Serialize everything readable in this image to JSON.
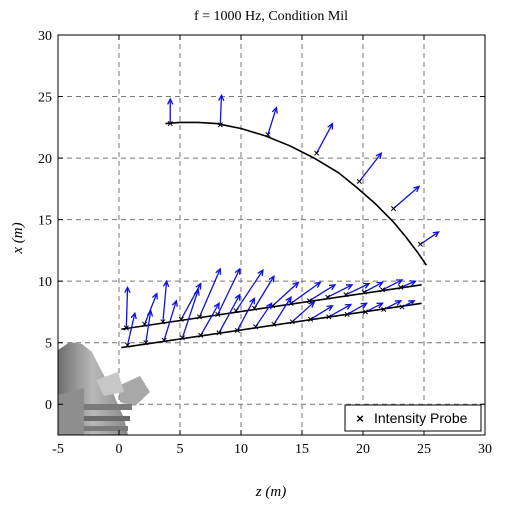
{
  "chart_data": {
    "type": "vector-field",
    "title": "f = 1000 Hz, Condition Mil",
    "xlabel": "z (m)",
    "ylabel": "x (m)",
    "xlim": [
      -5,
      30
    ],
    "ylim": [
      -2.5,
      30
    ],
    "xticks": [
      "-5",
      "0",
      "5",
      "10",
      "15",
      "20",
      "25",
      "30"
    ],
    "yticks": [
      "0",
      "5",
      "10",
      "15",
      "20",
      "25",
      "30"
    ],
    "grid": true,
    "legend": {
      "position": "bottom-right",
      "entries": [
        {
          "label": "Intensity Probe",
          "marker": "x"
        }
      ]
    },
    "colors": {
      "vector": "#1010e0",
      "probe": "#000000",
      "array": "#000000",
      "nozzle": "#9a9a9a"
    },
    "arrays": [
      {
        "name": "arc",
        "points": [
          [
            3.8,
            22.8
          ],
          [
            5.0,
            22.9
          ],
          [
            6.5,
            22.9
          ],
          [
            8.0,
            22.8
          ],
          [
            10.0,
            22.4
          ],
          [
            12.0,
            21.8
          ],
          [
            14.0,
            21.0
          ],
          [
            16.0,
            20.0
          ],
          [
            18.0,
            18.8
          ],
          [
            19.5,
            17.6
          ],
          [
            21.0,
            16.3
          ],
          [
            22.5,
            14.8
          ],
          [
            23.5,
            13.6
          ],
          [
            24.5,
            12.3
          ],
          [
            25.2,
            11.3
          ]
        ]
      },
      {
        "name": "upper-line",
        "points": [
          [
            0.2,
            6.1
          ],
          [
            24.8,
            9.7
          ]
        ]
      },
      {
        "name": "lower-line",
        "points": [
          [
            0.2,
            4.6
          ],
          [
            24.8,
            8.2
          ]
        ]
      }
    ],
    "vectors": [
      {
        "x": 4.2,
        "y": 22.8,
        "dx": 0.0,
        "dy": 2.0
      },
      {
        "x": 8.3,
        "y": 22.7,
        "dx": 0.1,
        "dy": 2.4
      },
      {
        "x": 12.2,
        "y": 21.9,
        "dx": 0.7,
        "dy": 2.2
      },
      {
        "x": 16.2,
        "y": 20.4,
        "dx": 1.3,
        "dy": 2.4
      },
      {
        "x": 19.7,
        "y": 18.1,
        "dx": 1.8,
        "dy": 2.3
      },
      {
        "x": 22.5,
        "y": 15.9,
        "dx": 2.1,
        "dy": 1.8
      },
      {
        "x": 24.7,
        "y": 13.0,
        "dx": 1.5,
        "dy": 1.0
      },
      {
        "x": 0.6,
        "y": 6.2,
        "dx": 0.1,
        "dy": 3.3
      },
      {
        "x": 2.1,
        "y": 6.5,
        "dx": 1.0,
        "dy": 2.5
      },
      {
        "x": 3.6,
        "y": 6.7,
        "dx": 0.3,
        "dy": 3.3
      },
      {
        "x": 5.1,
        "y": 6.9,
        "dx": 1.6,
        "dy": 2.9
      },
      {
        "x": 6.6,
        "y": 7.1,
        "dx": 1.7,
        "dy": 3.9
      },
      {
        "x": 8.1,
        "y": 7.3,
        "dx": 1.8,
        "dy": 3.7
      },
      {
        "x": 9.6,
        "y": 7.6,
        "dx": 2.2,
        "dy": 3.3
      },
      {
        "x": 11.1,
        "y": 7.8,
        "dx": 1.6,
        "dy": 2.6
      },
      {
        "x": 12.6,
        "y": 8.0,
        "dx": 2.1,
        "dy": 1.9
      },
      {
        "x": 14.1,
        "y": 8.2,
        "dx": 2.4,
        "dy": 1.7
      },
      {
        "x": 15.6,
        "y": 8.4,
        "dx": 2.1,
        "dy": 1.3
      },
      {
        "x": 17.1,
        "y": 8.7,
        "dx": 2.0,
        "dy": 1.0
      },
      {
        "x": 18.6,
        "y": 8.9,
        "dx": 1.9,
        "dy": 0.9
      },
      {
        "x": 20.1,
        "y": 9.1,
        "dx": 1.5,
        "dy": 0.8
      },
      {
        "x": 21.6,
        "y": 9.3,
        "dx": 1.6,
        "dy": 0.8
      },
      {
        "x": 23.1,
        "y": 9.5,
        "dx": 1.2,
        "dy": 0.5
      },
      {
        "x": 0.7,
        "y": 4.8,
        "dx": 0.6,
        "dy": 2.6
      },
      {
        "x": 2.2,
        "y": 5.0,
        "dx": 0.4,
        "dy": 2.6
      },
      {
        "x": 3.7,
        "y": 5.2,
        "dx": 1.0,
        "dy": 3.2
      },
      {
        "x": 5.2,
        "y": 5.4,
        "dx": 1.3,
        "dy": 3.9
      },
      {
        "x": 6.7,
        "y": 5.6,
        "dx": 1.5,
        "dy": 2.6
      },
      {
        "x": 8.2,
        "y": 5.8,
        "dx": 1.7,
        "dy": 3.1
      },
      {
        "x": 9.7,
        "y": 6.0,
        "dx": 1.4,
        "dy": 2.6
      },
      {
        "x": 11.2,
        "y": 6.3,
        "dx": 1.3,
        "dy": 1.9
      },
      {
        "x": 12.7,
        "y": 6.5,
        "dx": 1.4,
        "dy": 2.2
      },
      {
        "x": 14.2,
        "y": 6.7,
        "dx": 1.8,
        "dy": 1.6
      },
      {
        "x": 15.7,
        "y": 6.9,
        "dx": 1.8,
        "dy": 1.1
      },
      {
        "x": 17.2,
        "y": 7.1,
        "dx": 1.8,
        "dy": 1.0
      },
      {
        "x": 18.7,
        "y": 7.3,
        "dx": 1.6,
        "dy": 0.9
      },
      {
        "x": 20.2,
        "y": 7.5,
        "dx": 1.4,
        "dy": 0.7
      },
      {
        "x": 21.7,
        "y": 7.7,
        "dx": 1.4,
        "dy": 0.7
      },
      {
        "x": 23.2,
        "y": 7.9,
        "dx": 1.0,
        "dy": 0.5
      }
    ]
  }
}
